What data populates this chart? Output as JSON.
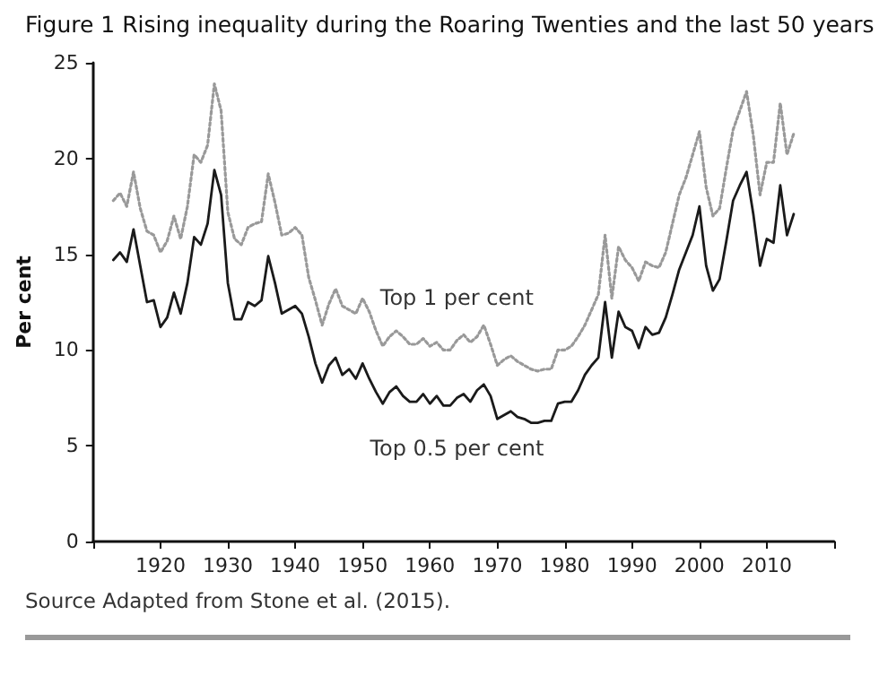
{
  "chart_data": {
    "type": "line",
    "title": "Figure 1 Rising inequality during the Roaring Twenties and the last 50 years",
    "ylabel": "Per cent",
    "annotations": [
      "Source Adapted from Stone et al. (2015)."
    ],
    "x": [
      1913,
      1914,
      1915,
      1916,
      1917,
      1918,
      1919,
      1920,
      1921,
      1922,
      1923,
      1924,
      1925,
      1926,
      1927,
      1928,
      1929,
      1930,
      1931,
      1932,
      1933,
      1934,
      1935,
      1936,
      1937,
      1938,
      1939,
      1940,
      1941,
      1942,
      1943,
      1944,
      1945,
      1946,
      1947,
      1948,
      1949,
      1950,
      1951,
      1952,
      1953,
      1954,
      1955,
      1956,
      1957,
      1958,
      1959,
      1960,
      1961,
      1962,
      1963,
      1964,
      1965,
      1966,
      1967,
      1968,
      1969,
      1970,
      1971,
      1972,
      1973,
      1974,
      1975,
      1976,
      1977,
      1978,
      1979,
      1980,
      1981,
      1982,
      1983,
      1984,
      1985,
      1986,
      1987,
      1988,
      1989,
      1990,
      1991,
      1992,
      1993,
      1994,
      1995,
      1996,
      1997,
      1998,
      1999,
      2000,
      2001,
      2002,
      2003,
      2004,
      2005,
      2006,
      2007,
      2008,
      2009,
      2010,
      2011,
      2012,
      2013,
      2014
    ],
    "series": [
      {
        "name": "Top 1 per cent",
        "color": "#999999",
        "line_style": "dotted",
        "values": [
          17.8,
          18.2,
          17.5,
          19.3,
          17.4,
          16.2,
          16.0,
          15.1,
          15.7,
          17.0,
          15.8,
          17.5,
          20.2,
          19.8,
          20.7,
          23.9,
          22.5,
          17.2,
          15.8,
          15.5,
          16.4,
          16.6,
          16.7,
          19.2,
          17.7,
          16.0,
          16.1,
          16.4,
          16.0,
          13.8,
          12.6,
          11.3,
          12.4,
          13.2,
          12.3,
          12.1,
          11.9,
          12.7,
          12.0,
          11.0,
          10.2,
          10.7,
          11.0,
          10.7,
          10.3,
          10.3,
          10.6,
          10.2,
          10.4,
          10.0,
          10.0,
          10.5,
          10.8,
          10.4,
          10.7,
          11.3,
          10.3,
          9.2,
          9.5,
          9.7,
          9.4,
          9.2,
          9.0,
          8.9,
          9.0,
          9.0,
          10.0,
          10.0,
          10.2,
          10.7,
          11.3,
          12.1,
          12.9,
          16.0,
          12.7,
          15.4,
          14.7,
          14.3,
          13.6,
          14.6,
          14.4,
          14.3,
          15.1,
          16.6,
          18.1,
          19.0,
          20.2,
          21.4,
          18.5,
          17.0,
          17.4,
          19.5,
          21.5,
          22.5,
          23.5,
          21.2,
          18.1,
          19.8,
          19.8,
          22.9,
          20.2,
          21.3
        ]
      },
      {
        "name": "Top 0.5 per cent",
        "color": "#1a1a1a",
        "line_style": "solid",
        "values": [
          14.7,
          15.1,
          14.6,
          16.3,
          14.4,
          12.5,
          12.6,
          11.2,
          11.7,
          13.0,
          11.9,
          13.5,
          15.9,
          15.5,
          16.6,
          19.4,
          18.1,
          13.5,
          11.6,
          11.6,
          12.5,
          12.3,
          12.6,
          14.9,
          13.5,
          11.9,
          12.1,
          12.3,
          11.9,
          10.7,
          9.3,
          8.3,
          9.2,
          9.6,
          8.7,
          9.0,
          8.5,
          9.3,
          8.5,
          7.8,
          7.2,
          7.8,
          8.1,
          7.6,
          7.3,
          7.3,
          7.7,
          7.2,
          7.6,
          7.1,
          7.1,
          7.5,
          7.7,
          7.3,
          7.9,
          8.2,
          7.6,
          6.4,
          6.6,
          6.8,
          6.5,
          6.4,
          6.2,
          6.2,
          6.3,
          6.3,
          7.2,
          7.3,
          7.3,
          7.9,
          8.7,
          9.2,
          9.6,
          12.5,
          9.6,
          12.0,
          11.2,
          11.0,
          10.1,
          11.2,
          10.8,
          10.9,
          11.7,
          12.9,
          14.2,
          15.1,
          16.0,
          17.5,
          14.4,
          13.1,
          13.7,
          15.7,
          17.8,
          18.6,
          19.3,
          17.1,
          14.4,
          15.8,
          15.6,
          18.6,
          16.0,
          17.1
        ]
      }
    ],
    "xlim": [
      1910,
      2020
    ],
    "xticks": [
      {
        "value": 1910,
        "label": null
      },
      1920,
      1930,
      1940,
      1950,
      1960,
      1970,
      1980,
      1990,
      2000,
      2010,
      {
        "value": 2020,
        "label": null
      }
    ],
    "ylim": [
      0,
      25
    ],
    "yticks": [
      0,
      5,
      10,
      15,
      20,
      25
    ],
    "grid": false,
    "marker": "none"
  }
}
